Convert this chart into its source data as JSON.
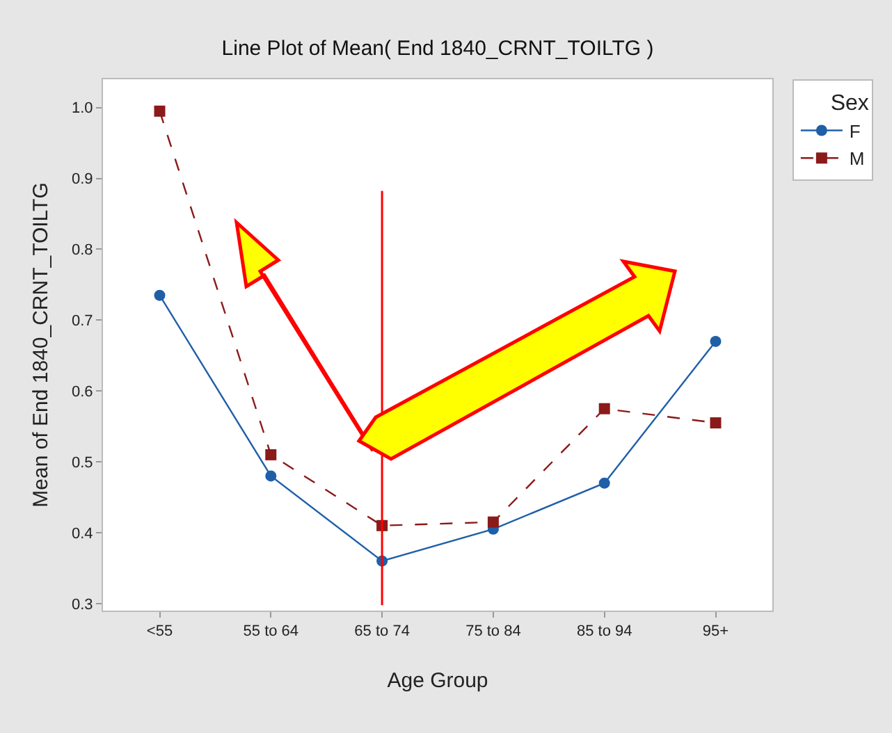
{
  "chart_data": {
    "type": "line",
    "title": "Line Plot of Mean( End 1840_CRNT_TOILTG )",
    "xlabel": "Age Group",
    "ylabel": "Mean of End 1840_CRNT_TOILTG",
    "legend_title": "Sex",
    "categories": [
      "<55",
      "55 to 64",
      "65 to 74",
      "75 to 84",
      "85 to 94",
      "95+"
    ],
    "series": [
      {
        "name": "F",
        "color": "#1f5fa8",
        "marker": "circle",
        "line_style": "solid",
        "values": [
          0.735,
          0.48,
          0.36,
          0.405,
          0.47,
          0.67
        ]
      },
      {
        "name": "M",
        "color": "#8b1a1a",
        "marker": "square",
        "line_style": "dashed",
        "values": [
          0.995,
          0.51,
          0.41,
          0.415,
          0.575,
          0.555
        ]
      }
    ],
    "ylim": [
      0.29,
      1.04
    ],
    "yticks": [
      {
        "value": 0.3,
        "label": "0.3"
      },
      {
        "value": 0.4,
        "label": "0.4"
      },
      {
        "value": 0.5,
        "label": "0.5"
      },
      {
        "value": 0.6,
        "label": "0.6"
      },
      {
        "value": 0.7,
        "label": "0.7"
      },
      {
        "value": 0.8,
        "label": "0.8"
      },
      {
        "value": 0.9,
        "label": "0.9"
      },
      {
        "value": 1.0,
        "label": "1.0"
      }
    ],
    "grid": false,
    "legend": "top right",
    "ref_lines": [
      {
        "axis": "x",
        "value": "65 to 74",
        "color": "#ff0000"
      }
    ]
  }
}
